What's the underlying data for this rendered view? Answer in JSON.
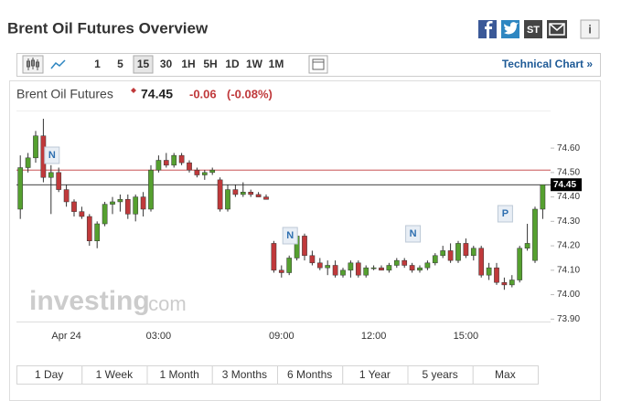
{
  "header": {
    "title": "Brent Oil Futures Overview",
    "stocktwits": "ST",
    "info": "i"
  },
  "toolbar": {
    "intervals": [
      "1",
      "5",
      "15",
      "30",
      "1H",
      "5H",
      "1D",
      "1W",
      "1M"
    ],
    "selected": "15",
    "link": "Technical Chart »"
  },
  "chart_data": {
    "type": "candlestick",
    "name": "Brent Oil Futures",
    "last": 74.45,
    "change": -0.06,
    "change_percent": {
      "value": -0.08,
      "label": "(-0.08%)"
    },
    "last_label": "74.45",
    "prev_close": 74.51,
    "watermark": [
      "investing",
      ".com"
    ],
    "events": [
      "N",
      "N",
      "N",
      "P"
    ],
    "categories": [
      null,
      null,
      null,
      null,
      null,
      null,
      "Apr 24",
      null,
      null,
      null,
      null,
      null,
      null,
      null,
      null,
      null,
      null,
      null,
      "03:00",
      null,
      null,
      null,
      null,
      null,
      null,
      null,
      null,
      null,
      null,
      null,
      null,
      null,
      null,
      null,
      "09:00",
      null,
      null,
      null,
      null,
      null,
      null,
      null,
      null,
      null,
      null,
      null,
      "12:00",
      null,
      null,
      null,
      null,
      null,
      null,
      null,
      null,
      null,
      null,
      null,
      "15:00",
      null,
      null,
      null,
      null,
      null,
      null,
      null,
      null,
      null,
      null
    ],
    "open": [
      74.35,
      74.52,
      74.56,
      74.65,
      74.48,
      74.5,
      74.43,
      74.38,
      74.34,
      74.32,
      74.22,
      74.29,
      74.37,
      74.38,
      74.39,
      74.33,
      74.4,
      74.35,
      74.51,
      74.55,
      74.53,
      74.57,
      74.54,
      74.51,
      74.49,
      74.5,
      74.47,
      74.35,
      74.43,
      74.41,
      74.42,
      74.41,
      74.4,
      74.21,
      74.1,
      74.09,
      74.15,
      74.24,
      74.16,
      74.13,
      74.11,
      74.12,
      74.08,
      74.1,
      74.13,
      74.08,
      74.11,
      74.11,
      74.1,
      74.12,
      74.14,
      74.12,
      74.1,
      74.11,
      74.13,
      74.16,
      74.18,
      74.14,
      74.21,
      74.16,
      74.19,
      74.08,
      74.11,
      74.05,
      74.04,
      74.06,
      74.19,
      74.14,
      74.35
    ],
    "high": [
      74.57,
      74.58,
      74.67,
      74.72,
      74.53,
      74.52,
      74.45,
      74.39,
      74.36,
      74.33,
      74.3,
      74.38,
      74.4,
      74.41,
      74.41,
      74.41,
      74.42,
      74.53,
      74.57,
      74.58,
      74.58,
      74.58,
      74.55,
      74.52,
      74.51,
      74.52,
      74.48,
      74.45,
      74.45,
      74.46,
      74.43,
      74.42,
      74.41,
      74.22,
      74.12,
      74.16,
      74.25,
      74.25,
      74.18,
      74.15,
      74.14,
      74.14,
      74.11,
      74.14,
      74.14,
      74.12,
      74.12,
      74.12,
      74.13,
      74.15,
      74.15,
      74.13,
      74.12,
      74.14,
      74.17,
      74.2,
      74.21,
      74.22,
      74.23,
      74.2,
      74.2,
      74.13,
      74.13,
      74.07,
      74.08,
      74.2,
      74.29,
      74.36,
      74.45
    ],
    "low": [
      74.31,
      74.5,
      74.54,
      74.46,
      74.33,
      74.42,
      74.36,
      74.32,
      74.31,
      74.2,
      74.19,
      74.28,
      74.33,
      74.34,
      74.31,
      74.3,
      74.32,
      74.34,
      74.5,
      74.52,
      74.52,
      74.53,
      74.5,
      74.48,
      74.47,
      74.49,
      74.34,
      74.34,
      74.4,
      74.4,
      74.4,
      74.4,
      74.39,
      74.09,
      74.07,
      74.08,
      74.14,
      74.14,
      74.12,
      74.1,
      74.08,
      74.07,
      74.07,
      74.07,
      74.07,
      74.07,
      74.1,
      74.1,
      74.09,
      74.11,
      74.11,
      74.09,
      74.09,
      74.1,
      74.12,
      74.15,
      74.13,
      74.13,
      74.15,
      74.14,
      74.07,
      74.06,
      74.04,
      74.02,
      74.03,
      74.05,
      74.18,
      74.13,
      74.31
    ],
    "close": [
      74.52,
      74.56,
      74.65,
      74.48,
      74.5,
      74.43,
      74.38,
      74.34,
      74.32,
      74.22,
      74.29,
      74.37,
      74.38,
      74.39,
      74.33,
      74.4,
      74.35,
      74.51,
      74.55,
      74.53,
      74.57,
      74.54,
      74.51,
      74.49,
      74.5,
      74.51,
      74.35,
      74.43,
      74.41,
      74.42,
      74.41,
      74.4,
      74.39,
      74.1,
      74.09,
      74.15,
      74.24,
      74.16,
      74.13,
      74.11,
      74.12,
      74.08,
      74.1,
      74.13,
      74.08,
      74.11,
      74.11,
      74.1,
      74.12,
      74.14,
      74.12,
      74.1,
      74.11,
      74.13,
      74.16,
      74.18,
      74.14,
      74.21,
      74.16,
      74.19,
      74.08,
      74.11,
      74.05,
      74.04,
      74.06,
      74.19,
      74.21,
      74.35,
      74.45
    ],
    "up_color": "#55a02f",
    "down_color": "#c0393b",
    "prev_close_color": "#c0393b",
    "last_color": "#000000",
    "ylim": [
      73.89,
      74.75
    ],
    "yticks": [
      {
        "value": 73.9,
        "label": "73.90"
      },
      {
        "value": 74.0,
        "label": "74.00"
      },
      {
        "value": 74.1,
        "label": "74.10"
      },
      {
        "value": 74.2,
        "label": "74.20"
      },
      {
        "value": 74.3,
        "label": "74.30"
      },
      {
        "value": 74.4,
        "label": "74.40"
      },
      {
        "value": 74.5,
        "label": "74.50"
      },
      {
        "value": 74.6,
        "label": "74.60"
      }
    ]
  },
  "ranges": [
    "1 Day",
    "1 Week",
    "1 Month",
    "3 Months",
    "6 Months",
    "1 Year",
    "5 years",
    "Max"
  ]
}
